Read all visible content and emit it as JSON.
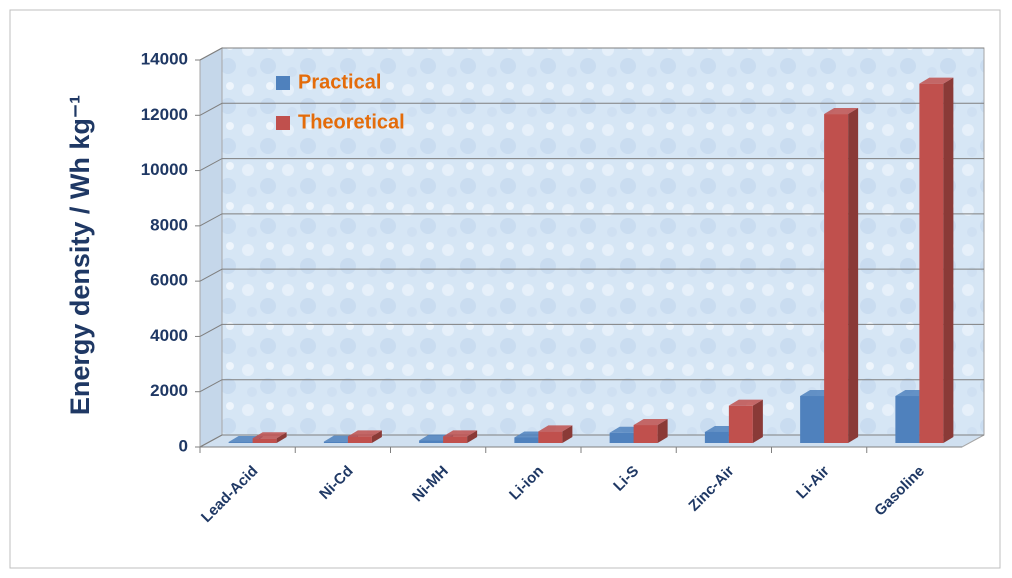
{
  "chart_data": {
    "type": "bar3d",
    "ylabel": "Energy density / Wh kg⁻¹",
    "categories": [
      "Lead-Acid",
      "Ni-Cd",
      "Ni-MH",
      "Li-ion",
      "Li-S",
      "Zinc-Air",
      "Li-Air",
      "Gasoline"
    ],
    "series": [
      {
        "name": "Practical",
        "color": "#4f81bd",
        "values": [
          35,
          50,
          90,
          200,
          370,
          400,
          1700,
          1700
        ]
      },
      {
        "name": "Theoretical",
        "color": "#c0504d",
        "values": [
          170,
          240,
          240,
          420,
          650,
          1350,
          11900,
          13000
        ]
      }
    ],
    "ylim": [
      0,
      14000
    ],
    "yticks": [
      0,
      2000,
      4000,
      6000,
      8000,
      10000,
      12000,
      14000
    ],
    "grid": true,
    "legend": "top-left"
  }
}
